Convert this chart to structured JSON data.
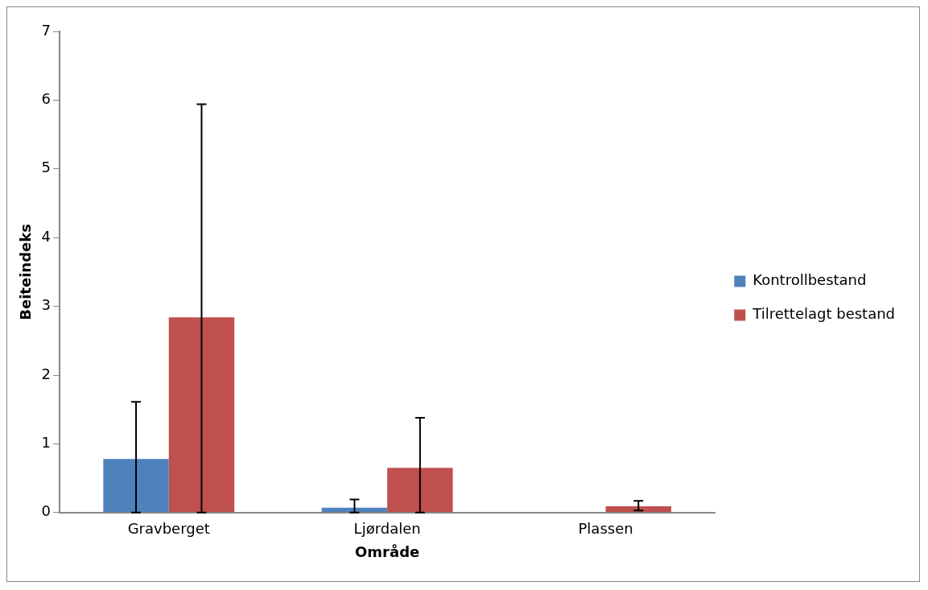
{
  "chart_data": {
    "type": "bar",
    "xlabel": "Område",
    "ylabel": "Beiteindeks",
    "categories": [
      "Gravberget",
      "Ljørdalen",
      "Plassen"
    ],
    "series": [
      {
        "name": "Kontrollbestand",
        "color": "#4f81bd",
        "values": [
          0.78,
          0.07,
          0
        ],
        "errors": [
          [
            0,
            1.61
          ],
          [
            0,
            0.19
          ],
          null
        ]
      },
      {
        "name": "Tilrettelagt bestand",
        "color": "#c0504d",
        "values": [
          2.84,
          0.65,
          0.09
        ],
        "errors": [
          [
            0,
            5.94
          ],
          [
            0,
            1.38
          ],
          [
            0.03,
            0.17
          ]
        ]
      }
    ],
    "ylim": [
      0,
      7
    ],
    "yticks": [
      0,
      1,
      2,
      3,
      4,
      5,
      6,
      7
    ],
    "grid": false,
    "legend": "right"
  }
}
